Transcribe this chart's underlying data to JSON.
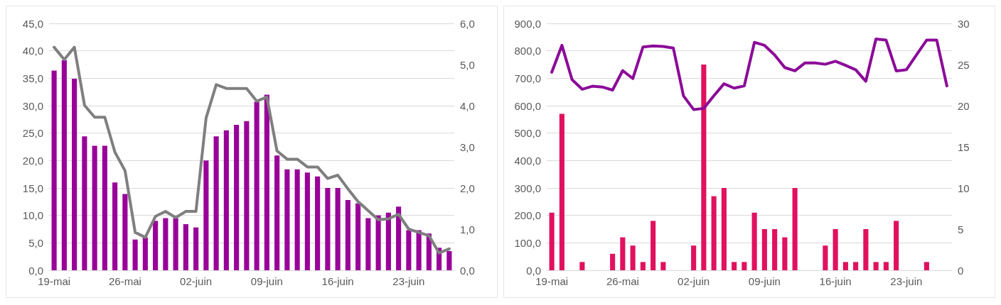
{
  "chart_data": [
    {
      "type": "bar",
      "categories": [
        "19-mai",
        null,
        null,
        null,
        null,
        null,
        null,
        "26-mai",
        null,
        null,
        null,
        null,
        null,
        null,
        "02-juin",
        null,
        null,
        null,
        null,
        null,
        null,
        "09-juin",
        null,
        null,
        null,
        null,
        null,
        null,
        "16-juin",
        null,
        null,
        null,
        null,
        null,
        null,
        "23-juin",
        null,
        null,
        null,
        null
      ],
      "series": [
        {
          "color": "#990099",
          "values": [
            36.4,
            38.3,
            34.9,
            24.4,
            22.7,
            22.7,
            16.0,
            13.9,
            5.6,
            6.0,
            9.0,
            9.5,
            9.5,
            8.4,
            7.8,
            20.0,
            24.4,
            25.5,
            26.5,
            27.2,
            30.7,
            32.0,
            20.9,
            18.4,
            18.4,
            17.8,
            17.1,
            15.0,
            15.0,
            12.8,
            12.2,
            9.5,
            10.0,
            10.5,
            11.6,
            7.3,
            7.3,
            6.7,
            4.1,
            3.5
          ]
        },
        {
          "type": "line",
          "axis": "y2",
          "color": "#7f7f7f",
          "values": [
            5.42,
            5.12,
            5.42,
            4.01,
            3.72,
            3.72,
            2.87,
            2.42,
            0.92,
            0.8,
            1.31,
            1.43,
            1.28,
            1.43,
            1.43,
            3.7,
            4.51,
            4.42,
            4.42,
            4.42,
            4.11,
            4.21,
            2.9,
            2.7,
            2.7,
            2.51,
            2.51,
            2.23,
            2.31,
            1.98,
            1.67,
            1.45,
            1.23,
            1.25,
            1.36,
            1.0,
            0.92,
            0.84,
            0.42,
            0.52
          ]
        }
      ],
      "ylim": [
        0,
        45
      ],
      "yticks": [
        {
          "value": 0,
          "label": "0,0"
        },
        {
          "value": 5,
          "label": "5,0"
        },
        {
          "value": 10,
          "label": "10,0"
        },
        {
          "value": 15,
          "label": "15,0"
        },
        {
          "value": 20,
          "label": "20,0"
        },
        {
          "value": 25,
          "label": "25,0"
        },
        {
          "value": 30,
          "label": "30,0"
        },
        {
          "value": 35,
          "label": "35,0"
        },
        {
          "value": 40,
          "label": "40,0"
        },
        {
          "value": 45,
          "label": "45,0"
        }
      ],
      "y2lim": [
        0,
        6
      ],
      "y2ticks": [
        {
          "value": 0,
          "label": "0,0"
        },
        {
          "value": 1,
          "label": "1,0"
        },
        {
          "value": 2,
          "label": "2,0"
        },
        {
          "value": 3,
          "label": "3,0"
        },
        {
          "value": 4,
          "label": "4,0"
        },
        {
          "value": 5,
          "label": "5,0"
        },
        {
          "value": 6,
          "label": "6,0"
        }
      ],
      "grid": "y",
      "marker": "none",
      "line_style": "solid"
    },
    {
      "type": "bar",
      "categories": [
        "19-mai",
        null,
        null,
        null,
        null,
        null,
        null,
        "26-mai",
        null,
        null,
        null,
        null,
        null,
        null,
        "02-juin",
        null,
        null,
        null,
        null,
        null,
        null,
        "09-juin",
        null,
        null,
        null,
        null,
        null,
        null,
        "16-juin",
        null,
        null,
        null,
        null,
        null,
        null,
        "23-juin",
        null,
        null,
        null,
        null
      ],
      "series": [
        {
          "axis": "y2",
          "color": "#e0115f",
          "values": [
            7,
            19,
            null,
            1,
            null,
            null,
            2,
            4,
            3,
            1,
            6,
            1,
            null,
            null,
            3,
            25,
            9,
            10,
            1,
            1,
            7,
            5,
            5,
            4,
            10,
            null,
            null,
            3,
            5,
            1,
            1,
            5,
            1,
            1,
            6,
            null,
            null,
            1,
            null,
            null
          ]
        },
        {
          "type": "line",
          "color": "#8b0a98",
          "values": [
            722,
            820,
            695,
            660,
            671,
            668,
            657,
            728,
            699,
            814,
            818,
            816,
            810,
            636,
            586,
            590,
            636,
            680,
            664,
            672,
            831,
            820,
            785,
            739,
            727,
            756,
            756,
            751,
            762,
            747,
            731,
            689,
            843,
            839,
            727,
            731,
            785,
            839,
            839,
            672
          ]
        }
      ],
      "ylim": [
        0,
        900
      ],
      "yticks": [
        {
          "value": 0,
          "label": "0,0"
        },
        {
          "value": 100,
          "label": "100,0"
        },
        {
          "value": 200,
          "label": "200,0"
        },
        {
          "value": 300,
          "label": "300,0"
        },
        {
          "value": 400,
          "label": "400,0"
        },
        {
          "value": 500,
          "label": "500,0"
        },
        {
          "value": 600,
          "label": "600,0"
        },
        {
          "value": 700,
          "label": "700,0"
        },
        {
          "value": 800,
          "label": "800,0"
        },
        {
          "value": 900,
          "label": "900,0"
        }
      ],
      "y2lim": [
        0,
        30
      ],
      "y2ticks": [
        0,
        5,
        10,
        15,
        20,
        25,
        30
      ],
      "grid": "y",
      "marker": "none",
      "line_style": "solid"
    }
  ]
}
